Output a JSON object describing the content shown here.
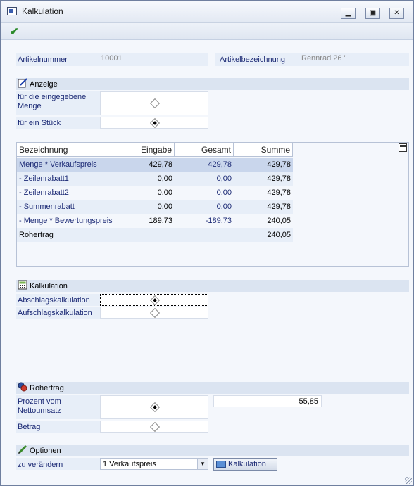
{
  "window": {
    "title": "Kalkulation"
  },
  "header": {
    "artikelnummer_label": "Artikelnummer",
    "artikelnummer_value": "10001",
    "artikelbezeichnung_label": "Artikelbezeichnung",
    "artikelbezeichnung_value": "Rennrad 26 \""
  },
  "anzeige": {
    "title": "Anzeige",
    "option1": "für die eingegebene Menge",
    "option2": "für ein Stück",
    "selected": "option2"
  },
  "table": {
    "columns": [
      "Bezeichnung",
      "Eingabe",
      "Gesamt",
      "Summe"
    ],
    "rows": [
      {
        "bez": "Menge * Verkaufspreis",
        "eingabe": "429,78",
        "gesamt": "429,78",
        "summe": "429,78"
      },
      {
        "bez": "- Zeilenrabatt1",
        "eingabe": "0,00",
        "gesamt": "0,00",
        "summe": "429,78"
      },
      {
        "bez": "- Zeilenrabatt2",
        "eingabe": "0,00",
        "gesamt": "0,00",
        "summe": "429,78"
      },
      {
        "bez": "- Summenrabatt",
        "eingabe": "0,00",
        "gesamt": "0,00",
        "summe": "429,78"
      },
      {
        "bez": "- Menge * Bewertungspreis",
        "eingabe": "189,73",
        "gesamt": "-189,73",
        "summe": "240,05"
      },
      {
        "bez": "Rohertrag",
        "eingabe": "",
        "gesamt": "",
        "summe": "240,05"
      }
    ]
  },
  "kalkulation": {
    "title": "Kalkulation",
    "option1": "Abschlagskalkulation",
    "option2": "Aufschlagskalkulation",
    "selected": "option1"
  },
  "rohertrag": {
    "title": "Rohertrag",
    "option1": "Prozent vom Nettoumsatz",
    "option2": "Betrag",
    "value": "55,85",
    "selected": "option1"
  },
  "optionen": {
    "title": "Optionen",
    "label": "zu verändern",
    "select_value": "1 Verkaufspreis",
    "button_label": "Kalkulation"
  },
  "colors": {
    "accent": "#1c2a75",
    "section_bg": "#dbe4f1",
    "highlight_row": "#c9d6ec"
  }
}
